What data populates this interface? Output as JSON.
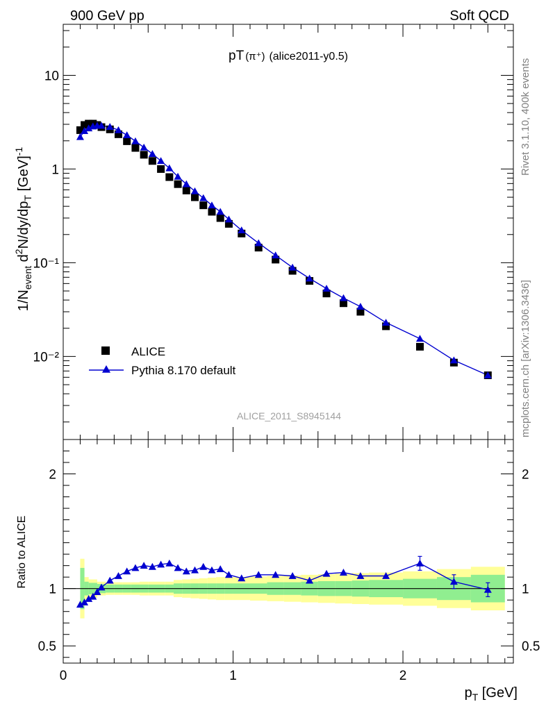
{
  "header": {
    "left": "900 GeV pp",
    "right": "Soft QCD"
  },
  "side_labels": {
    "rivet": "Rivet 3.1.10,  400k events",
    "mcplots": "mcplots.cern.ch [arXiv:1306.3436]"
  },
  "chart_data": [
    {
      "type": "scatter",
      "title_main": "pT",
      "title_particle": "(π⁺)",
      "title_tag": "(alice2011-y0.5)",
      "watermark": "ALICE_2011_S8945144",
      "ylabel": "1/N_event d²N/dy/dp_T [GeV]⁻¹",
      "yscale": "log",
      "ylim": [
        0.0013,
        35
      ],
      "xlim": [
        0,
        2.65
      ],
      "y_tick_labels": [
        "10⁻²",
        "10⁻¹",
        "1",
        "10"
      ],
      "legend_position": "bottom-left",
      "series": [
        {
          "name": "ALICE",
          "marker": "square",
          "color": "#000000",
          "x": [
            0.1,
            0.125,
            0.15,
            0.175,
            0.2,
            0.225,
            0.275,
            0.325,
            0.375,
            0.425,
            0.475,
            0.525,
            0.575,
            0.625,
            0.675,
            0.725,
            0.775,
            0.825,
            0.875,
            0.925,
            0.975,
            1.05,
            1.15,
            1.25,
            1.35,
            1.45,
            1.55,
            1.65,
            1.75,
            1.9,
            2.1,
            2.3,
            2.5
          ],
          "y": [
            2.6,
            2.95,
            3.05,
            3.05,
            2.95,
            2.8,
            2.65,
            2.35,
            1.98,
            1.68,
            1.42,
            1.22,
            1.0,
            0.82,
            0.69,
            0.59,
            0.5,
            0.41,
            0.35,
            0.3,
            0.26,
            0.205,
            0.145,
            0.108,
            0.082,
            0.064,
            0.047,
            0.037,
            0.03,
            0.021,
            0.0127,
            0.0086,
            0.0063
          ]
        },
        {
          "name": "Pythia 8.170 default",
          "marker": "triangle",
          "color": "#0000d0",
          "x": [
            0.1,
            0.125,
            0.15,
            0.175,
            0.2,
            0.225,
            0.275,
            0.325,
            0.375,
            0.425,
            0.475,
            0.525,
            0.575,
            0.625,
            0.675,
            0.725,
            0.775,
            0.825,
            0.875,
            0.925,
            0.975,
            1.05,
            1.15,
            1.25,
            1.35,
            1.45,
            1.55,
            1.65,
            1.75,
            1.9,
            2.1,
            2.3,
            2.5
          ],
          "y": [
            2.2,
            2.55,
            2.72,
            2.85,
            2.9,
            2.9,
            2.82,
            2.6,
            2.3,
            1.98,
            1.7,
            1.45,
            1.22,
            1.02,
            0.83,
            0.69,
            0.58,
            0.49,
            0.41,
            0.35,
            0.29,
            0.222,
            0.162,
            0.12,
            0.089,
            0.068,
            0.053,
            0.042,
            0.034,
            0.023,
            0.0155,
            0.0091,
            0.0063
          ]
        }
      ]
    },
    {
      "type": "scatter",
      "ylabel": "Ratio to ALICE",
      "xlabel": "p_T [GeV]",
      "xlim": [
        0,
        2.65
      ],
      "ylim": [
        0.35,
        2.3
      ],
      "x_ticks": [
        0,
        1,
        2
      ],
      "y_ticks": [
        0.5,
        1,
        2
      ],
      "reference_line": 1,
      "bands": {
        "x_edges": [
          0.1,
          0.125,
          0.15,
          0.2,
          0.25,
          0.3,
          0.35,
          0.4,
          0.45,
          0.5,
          0.55,
          0.6,
          0.65,
          0.7,
          0.75,
          0.8,
          0.85,
          0.9,
          0.95,
          1.0,
          1.1,
          1.2,
          1.3,
          1.4,
          1.5,
          1.6,
          1.7,
          1.8,
          2.0,
          2.2,
          2.4,
          2.6
        ],
        "inner_halfwidth": [
          0.18,
          0.06,
          0.05,
          0.04,
          0.035,
          0.035,
          0.035,
          0.035,
          0.035,
          0.035,
          0.035,
          0.035,
          0.045,
          0.045,
          0.045,
          0.045,
          0.045,
          0.045,
          0.045,
          0.045,
          0.045,
          0.055,
          0.055,
          0.06,
          0.065,
          0.065,
          0.07,
          0.075,
          0.085,
          0.1,
          0.12
        ],
        "outer_halfwidth": [
          0.26,
          0.1,
          0.08,
          0.06,
          0.055,
          0.055,
          0.055,
          0.055,
          0.06,
          0.06,
          0.06,
          0.06,
          0.075,
          0.08,
          0.085,
          0.09,
          0.095,
          0.1,
          0.1,
          0.1,
          0.105,
          0.11,
          0.115,
          0.12,
          0.125,
          0.13,
          0.135,
          0.14,
          0.15,
          0.17,
          0.19
        ]
      },
      "series": [
        {
          "name": "Pythia 8.170 default",
          "color": "#0000d0",
          "x": [
            0.1,
            0.125,
            0.15,
            0.175,
            0.2,
            0.225,
            0.275,
            0.325,
            0.375,
            0.425,
            0.475,
            0.525,
            0.575,
            0.625,
            0.675,
            0.725,
            0.775,
            0.825,
            0.875,
            0.925,
            0.975,
            1.05,
            1.15,
            1.25,
            1.35,
            1.45,
            1.55,
            1.65,
            1.75,
            1.9,
            2.1,
            2.3,
            2.5
          ],
          "y": [
            0.86,
            0.88,
            0.91,
            0.93,
            0.97,
            1.01,
            1.07,
            1.11,
            1.15,
            1.18,
            1.2,
            1.19,
            1.21,
            1.22,
            1.18,
            1.15,
            1.16,
            1.19,
            1.16,
            1.17,
            1.12,
            1.09,
            1.12,
            1.12,
            1.11,
            1.07,
            1.13,
            1.14,
            1.11,
            1.11,
            1.22,
            1.06,
            0.99
          ]
        }
      ]
    }
  ]
}
